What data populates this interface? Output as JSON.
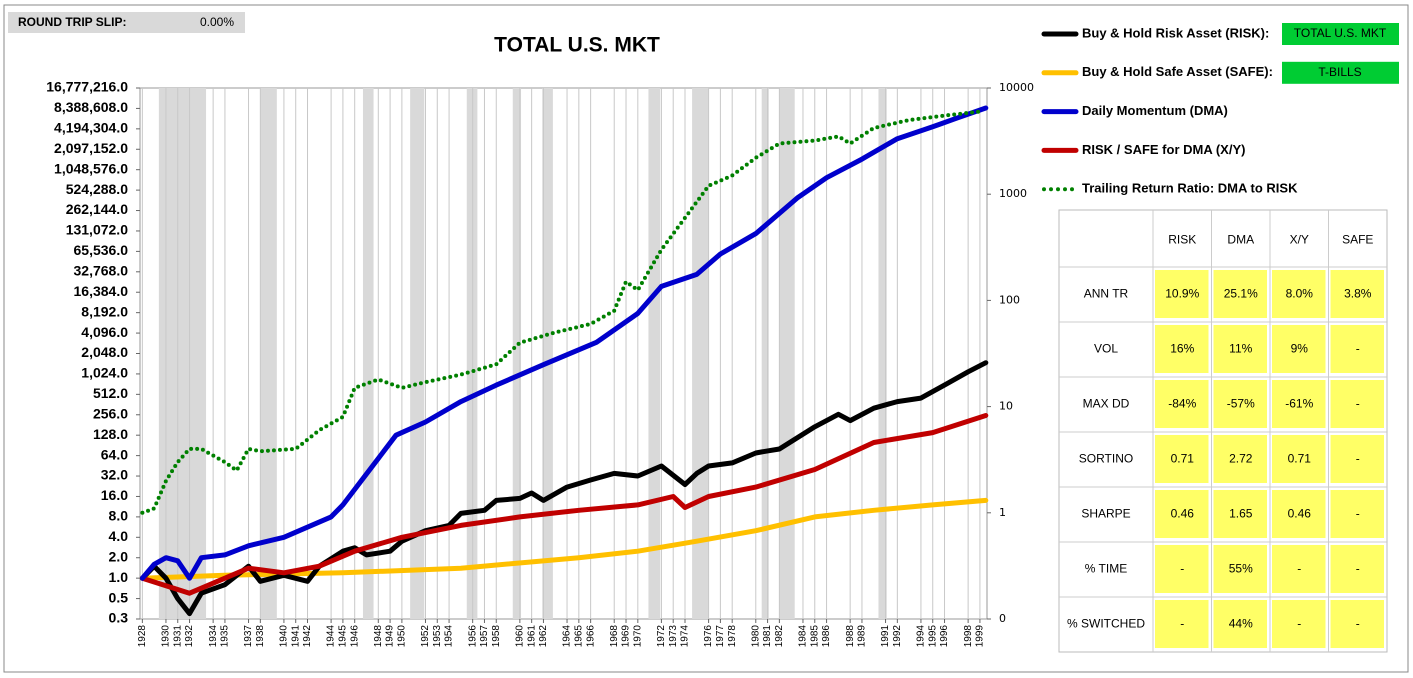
{
  "round_trip_slip": {
    "label": "ROUND TRIP SLIP:",
    "value": "0.00%"
  },
  "chart_data": {
    "type": "line",
    "title": "TOTAL U.S. MKT",
    "log_scale": true,
    "grid": "x",
    "xlim": [
      1927.8,
      1999.6
    ],
    "xticks": [
      1928,
      1930,
      1931,
      1932,
      1934,
      1935,
      1937,
      1938,
      1940,
      1941,
      1942,
      1944,
      1945,
      1946,
      1948,
      1949,
      1950,
      1952,
      1953,
      1954,
      1956,
      1957,
      1958,
      1960,
      1961,
      1962,
      1964,
      1965,
      1966,
      1968,
      1969,
      1970,
      1972,
      1973,
      1974,
      1976,
      1977,
      1978,
      1980,
      1981,
      1982,
      1984,
      1985,
      1986,
      1988,
      1989,
      1991,
      1992,
      1994,
      1995,
      1996,
      1998,
      1999
    ],
    "ylim": [
      0.25,
      16777216
    ],
    "yticks": [
      {
        "value": 16777216,
        "label": "16,777,216.0"
      },
      {
        "value": 8388608,
        "label": "8,388,608.0"
      },
      {
        "value": 4194304,
        "label": "4,194,304.0"
      },
      {
        "value": 2097152,
        "label": "2,097,152.0"
      },
      {
        "value": 1048576,
        "label": "1,048,576.0"
      },
      {
        "value": 524288,
        "label": "524,288.0"
      },
      {
        "value": 262144,
        "label": "262,144.0"
      },
      {
        "value": 131072,
        "label": "131,072.0"
      },
      {
        "value": 65536,
        "label": "65,536.0"
      },
      {
        "value": 32768,
        "label": "32,768.0"
      },
      {
        "value": 16384,
        "label": "16,384.0"
      },
      {
        "value": 8192,
        "label": "8,192.0"
      },
      {
        "value": 4096,
        "label": "4,096.0"
      },
      {
        "value": 2048,
        "label": "2,048.0"
      },
      {
        "value": 1024,
        "label": "1,024.0"
      },
      {
        "value": 512,
        "label": "512.0"
      },
      {
        "value": 256,
        "label": "256.0"
      },
      {
        "value": 128,
        "label": "128.0"
      },
      {
        "value": 64,
        "label": "64.0"
      },
      {
        "value": 32,
        "label": "32.0"
      },
      {
        "value": 16,
        "label": "16.0"
      },
      {
        "value": 8,
        "label": "8.0"
      },
      {
        "value": 4,
        "label": "4.0"
      },
      {
        "value": 2,
        "label": "2.0"
      },
      {
        "value": 1,
        "label": "1.0"
      },
      {
        "value": 0.5,
        "label": "0.5"
      },
      {
        "value": 0.25,
        "label": "0.3"
      }
    ],
    "y2lim": [
      0.1,
      10000
    ],
    "y2ticks": [
      10000,
      1000,
      100,
      10,
      1,
      {
        "value": 0.1,
        "label": "0"
      }
    ],
    "shaded_periods": [
      [
        1929.4,
        1933.4
      ],
      [
        1938.0,
        1939.4
      ],
      [
        1946.7,
        1947.6
      ],
      [
        1950.7,
        1951.9
      ],
      [
        1955.5,
        1956.4
      ],
      [
        1959.4,
        1960.1
      ],
      [
        1961.9,
        1962.8
      ],
      [
        1970.9,
        1971.9
      ],
      [
        1974.6,
        1976.0
      ],
      [
        1980.5,
        1981.1
      ],
      [
        1982.0,
        1983.3
      ],
      [
        1990.4,
        1991.1
      ]
    ],
    "series": [
      {
        "name": "Buy & Hold Risk Asset (RISK):",
        "asset": "TOTAL U.S. MKT",
        "color": "#000000",
        "x": [
          1928,
          1929,
          1930,
          1931,
          1932,
          1933,
          1935,
          1937,
          1938,
          1940,
          1942,
          1943,
          1945,
          1946,
          1947,
          1949,
          1950,
          1952,
          1954,
          1955,
          1957,
          1958,
          1960,
          1961,
          1962,
          1964,
          1966,
          1968,
          1970,
          1972,
          1974,
          1975,
          1976,
          1978,
          1980,
          1981,
          1982,
          1985,
          1987,
          1988,
          1990,
          1992,
          1994,
          1996,
          1998,
          1999.5
        ],
        "values": [
          1.0,
          1.5,
          1.0,
          0.5,
          0.3,
          0.6,
          0.8,
          1.5,
          0.9,
          1.1,
          0.9,
          1.5,
          2.5,
          2.8,
          2.2,
          2.5,
          3.5,
          5,
          6,
          9,
          10,
          14,
          15,
          18,
          14,
          22,
          28,
          35,
          32,
          45,
          24,
          35,
          45,
          50,
          70,
          75,
          80,
          170,
          260,
          210,
          320,
          400,
          450,
          700,
          1100,
          1500
        ]
      },
      {
        "name": "Buy & Hold Safe Asset (SAFE):",
        "asset": "T-BILLS",
        "color": "#ffc000",
        "x": [
          1928,
          1935,
          1945,
          1955,
          1965,
          1970,
          1975,
          1980,
          1985,
          1990,
          1995,
          1999.5
        ],
        "values": [
          1,
          1.1,
          1.2,
          1.4,
          2.0,
          2.5,
          3.5,
          5,
          8,
          10,
          12,
          14
        ]
      },
      {
        "name": "Daily Momentum (DMA)",
        "color": "#0000cc",
        "x": [
          1928,
          1929,
          1930,
          1931,
          1932,
          1933,
          1935,
          1937,
          1940,
          1944,
          1945,
          1949.5,
          1952,
          1955,
          1958,
          1962,
          1966.5,
          1970,
          1972,
          1975,
          1977,
          1980,
          1983.5,
          1986,
          1989,
          1992,
          1995,
          1997,
          1999.5
        ],
        "values": [
          1,
          1.6,
          2,
          1.8,
          1.0,
          2,
          2.2,
          3,
          4,
          8,
          12,
          128,
          200,
          400,
          700,
          1400,
          3000,
          8000,
          20000,
          30000,
          60000,
          120000,
          400000,
          800000,
          1500000,
          3000000,
          4500000,
          6000000,
          8500000
        ]
      },
      {
        "name": "RISK / SAFE for DMA (X/Y)",
        "color": "#c00000",
        "x": [
          1928,
          1932,
          1937,
          1940,
          1943,
          1946,
          1950,
          1955,
          1960,
          1965,
          1970,
          1973,
          1974,
          1976,
          1980,
          1985,
          1990,
          1995,
          1999.5
        ],
        "values": [
          1,
          0.6,
          1.4,
          1.2,
          1.5,
          2.5,
          4,
          6,
          8,
          10,
          12,
          16,
          11,
          16,
          22,
          40,
          100,
          140,
          250
        ]
      },
      {
        "name": "Trailing Return Ratio: DMA to RISK",
        "color": "#008000",
        "axis": "y2",
        "dotted": true,
        "x": [
          1928,
          1929,
          1930,
          1931,
          1932,
          1933,
          1935,
          1936,
          1937,
          1938,
          1941,
          1943,
          1945,
          1946,
          1948,
          1950,
          1952,
          1955,
          1958,
          1960,
          1963,
          1966,
          1968,
          1969,
          1970,
          1972,
          1974,
          1976,
          1978,
          1980,
          1982,
          1985,
          1987,
          1988,
          1990,
          1993,
          1996,
          1999
        ],
        "values": [
          1,
          1.1,
          2,
          3,
          4,
          4,
          3,
          2.5,
          4,
          3.8,
          4,
          6,
          8,
          15,
          18,
          15,
          17,
          20,
          25,
          40,
          50,
          60,
          80,
          150,
          125,
          300,
          600,
          1200,
          1500,
          2200,
          3000,
          3200,
          3500,
          3000,
          4200,
          5000,
          5500,
          6000
        ]
      }
    ]
  },
  "stats_table": {
    "columns": [
      "RISK",
      "DMA",
      "X/Y",
      "SAFE"
    ],
    "rows": [
      {
        "label": "ANN TR",
        "cells": [
          "10.9%",
          "25.1%",
          "8.0%",
          "3.8%"
        ]
      },
      {
        "label": "VOL",
        "cells": [
          "16%",
          "11%",
          "9%",
          "-"
        ]
      },
      {
        "label": "MAX DD",
        "cells": [
          "-84%",
          "-57%",
          "-61%",
          "-"
        ]
      },
      {
        "label": "SORTINO",
        "cells": [
          "0.71",
          "2.72",
          "0.71",
          "-"
        ]
      },
      {
        "label": "SHARPE",
        "cells": [
          "0.46",
          "1.65",
          "0.46",
          "-"
        ]
      },
      {
        "label": "% TIME",
        "cells": [
          "-",
          "55%",
          "-",
          "-"
        ]
      },
      {
        "label": "% SWITCHED",
        "cells": [
          "-",
          "44%",
          "-",
          "-"
        ]
      }
    ]
  }
}
